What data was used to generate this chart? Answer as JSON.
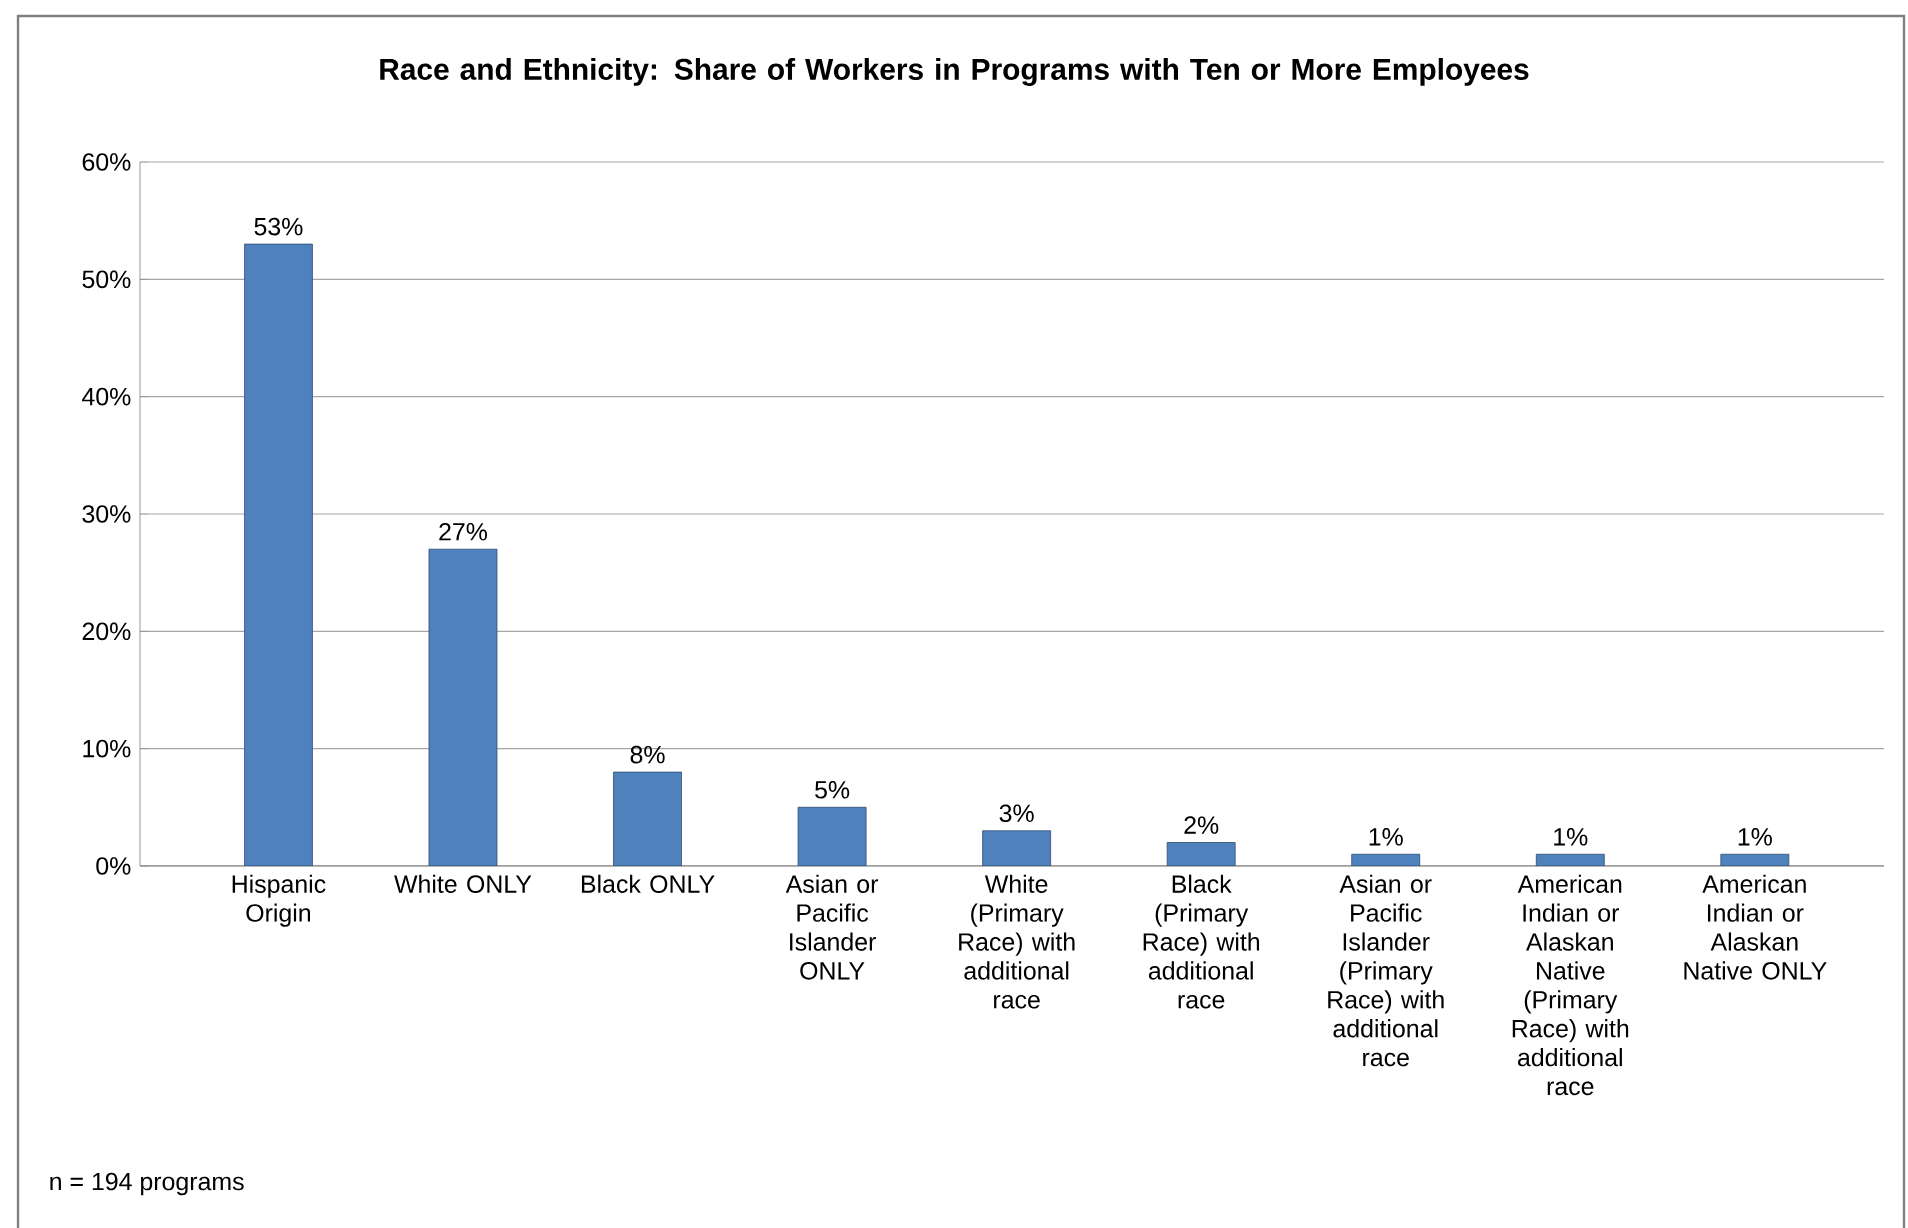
{
  "chart_data": {
    "type": "bar",
    "title": "Race and Ethnicity:  Share of Workers in Programs with Ten or More Employees",
    "categories": [
      "Hispanic Origin",
      "White ONLY",
      "Black ONLY",
      "Asian or Pacific Islander ONLY",
      "White (Primary Race) with additional race",
      "Black (Primary Race) with additional race",
      "Asian or Pacific Islander (Primary Race) with additional race",
      "American Indian or Alaskan Native (Primary Race) with additional race",
      "American Indian or Alaskan Native ONLY"
    ],
    "values": [
      53,
      27,
      8,
      5,
      3,
      2,
      1,
      1,
      1
    ],
    "value_labels": [
      "53%",
      "27%",
      "8%",
      "5%",
      "3%",
      "2%",
      "1%",
      "1%",
      "1%"
    ],
    "color": "#4f81bd",
    "ylim": [
      0,
      60
    ],
    "yticks": [
      {
        "value": 0,
        "label": "0%"
      },
      {
        "value": 10,
        "label": "10%"
      },
      {
        "value": 20,
        "label": "20%"
      },
      {
        "value": 30,
        "label": "30%"
      },
      {
        "value": 40,
        "label": "40%"
      },
      {
        "value": 50,
        "label": "50%"
      },
      {
        "value": 60,
        "label": "60%"
      }
    ],
    "grid": "y",
    "annotations": [
      "n = 194 programs"
    ]
  }
}
